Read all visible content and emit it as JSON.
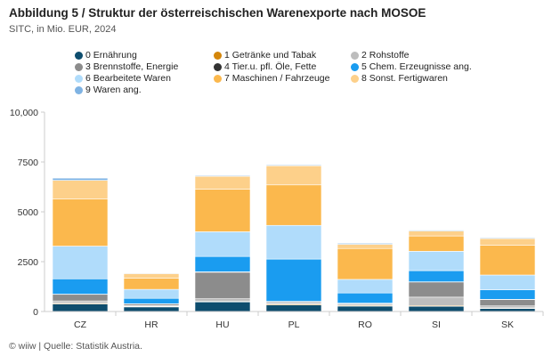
{
  "header": {
    "title": "Abbildung 5 / Struktur der österreischischen Warenexporte nach MOSOE",
    "subtitle": "SITC, in Mio. EUR, 2024"
  },
  "footer": {
    "source": "© wiiw | Quelle: Statistik Austria."
  },
  "chart_data": {
    "type": "bar",
    "stacked": true,
    "title": "Abbildung 5 / Struktur der österreischischen Warenexporte nach MOSOE",
    "subtitle": "SITC, in Mio. EUR, 2024",
    "xlabel": "",
    "ylabel": "",
    "ylim": [
      0,
      10000
    ],
    "yticks": [
      0,
      2500,
      5000,
      7500,
      10000
    ],
    "ytick_labels": [
      "0",
      "2500",
      "5000",
      "7500",
      "10,000"
    ],
    "grid": false,
    "legend_position": "top",
    "categories": [
      "CZ",
      "HR",
      "HU",
      "PL",
      "RO",
      "SI",
      "SK"
    ],
    "series": [
      {
        "name": "0 Ernährung",
        "color": "#0e4d6e",
        "values": [
          380,
          230,
          480,
          330,
          270,
          260,
          150
        ]
      },
      {
        "name": "1 Getränke und Tabak",
        "color": "#d4860b",
        "values": [
          40,
          30,
          30,
          40,
          40,
          40,
          30
        ]
      },
      {
        "name": "2 Rohstoffe",
        "color": "#bdbdbd",
        "values": [
          110,
          40,
          130,
          80,
          60,
          420,
          100
        ]
      },
      {
        "name": "3 Brennstoffe, Energie",
        "color": "#8c8c8c",
        "values": [
          330,
          80,
          1330,
          50,
          40,
          760,
          320
        ]
      },
      {
        "name": "4 Tier.u. pfl. Öle, Fette",
        "color": "#333333",
        "values": [
          10,
          10,
          20,
          10,
          10,
          10,
          10
        ]
      },
      {
        "name": "5 Chem. Erzeugnisse ang.",
        "color": "#1a9cf0",
        "values": [
          770,
          270,
          770,
          2120,
          510,
          560,
          480
        ]
      },
      {
        "name": "6 Bearbeitete Waren",
        "color": "#b0dcfb",
        "values": [
          1640,
          450,
          1240,
          1690,
          680,
          970,
          740
        ]
      },
      {
        "name": "7 Maschinen / Fahrzeuge",
        "color": "#fbb84d",
        "values": [
          2360,
          560,
          2140,
          2030,
          1550,
          770,
          1490
        ]
      },
      {
        "name": "8 Sonst. Fertigwaren",
        "color": "#fdd08a",
        "values": [
          940,
          230,
          640,
          960,
          210,
          250,
          340
        ]
      },
      {
        "name": "9 Waren ang.",
        "color": "#7fb3e3",
        "values": [
          110,
          30,
          40,
          40,
          50,
          40,
          40
        ]
      }
    ]
  }
}
